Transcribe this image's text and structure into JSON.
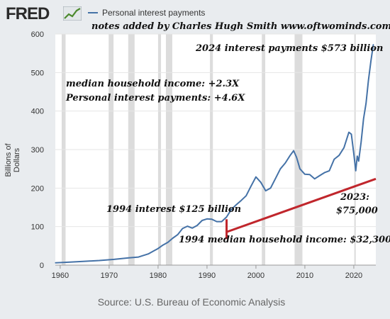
{
  "header": {
    "logo_text": "FRED",
    "logo_icon": "fred-line-graph-icon",
    "legend_label": "Personal interest payments"
  },
  "annotations": {
    "credit": "notes added by Charles Hugh Smith   www.oftwominds.com",
    "peak_2024": "2024 interest payments $573 billion",
    "income_growth": "median household income: +2.3X",
    "interest_growth": "Personal interest payments: +4.6X",
    "interest_1994": "1994 interest $125 billion",
    "income_1994": "1994 median household income: $32,300",
    "year_2023": "2023:",
    "income_2023": "$75,000"
  },
  "source": "Source: U.S. Bureau of Economic Analysis",
  "colors": {
    "series": "#4572a7",
    "overlay": "#c0262c",
    "recession": "#dcdcdc",
    "plot_background": "#ffffff",
    "page_background": "#e9ecef"
  },
  "chart_data": {
    "type": "line",
    "ylabel": "Billions of Dollars",
    "xlim": [
      1959,
      2024.5
    ],
    "ylim": [
      0,
      600
    ],
    "y_ticks": [
      0,
      100,
      200,
      300,
      400,
      500,
      600
    ],
    "x_ticks": [
      1960,
      1970,
      1980,
      1990,
      2000,
      2010,
      2020
    ],
    "grid": true,
    "legend_position": "top-left",
    "recessions": [
      [
        1960.3,
        1961.1
      ],
      [
        1969.9,
        1970.9
      ],
      [
        1973.9,
        1975.2
      ],
      [
        1980.0,
        1980.6
      ],
      [
        1981.6,
        1982.9
      ],
      [
        1990.6,
        1991.2
      ],
      [
        2001.2,
        2001.9
      ],
      [
        2007.9,
        2009.5
      ],
      [
        2020.1,
        2020.4
      ]
    ],
    "series": [
      {
        "name": "Personal interest payments",
        "x": [
          1959,
          1962,
          1965,
          1968,
          1971,
          1974,
          1976,
          1978,
          1979,
          1980,
          1981,
          1982,
          1983,
          1984,
          1985,
          1986,
          1987,
          1988,
          1989,
          1990,
          1991,
          1992,
          1993,
          1994,
          1995,
          1996,
          1997,
          1998,
          1999,
          2000,
          2001,
          2002,
          2003,
          2004,
          2005,
          2006,
          2007,
          2007.7,
          2008.3,
          2009,
          2010,
          2011,
          2012,
          2013,
          2014,
          2015,
          2016,
          2017,
          2018,
          2019,
          2019.5,
          2020,
          2020.4,
          2020.7,
          2021,
          2021.5,
          2022,
          2022.5,
          2023,
          2023.5,
          2024
        ],
        "y": [
          6,
          8,
          10,
          12,
          15,
          19,
          21,
          29,
          36,
          43,
          52,
          59,
          70,
          79,
          95,
          101,
          96,
          103,
          116,
          120,
          119,
          113,
          113,
          125,
          145,
          157,
          168,
          180,
          205,
          229,
          215,
          193,
          200,
          225,
          250,
          265,
          285,
          297,
          280,
          250,
          236,
          235,
          224,
          232,
          240,
          245,
          275,
          285,
          305,
          345,
          340,
          290,
          245,
          283,
          270,
          320,
          380,
          420,
          480,
          530,
          573
        ]
      }
    ],
    "overlay_line": {
      "name": "",
      "x": [
        1994,
        2024.5
      ],
      "y": [
        86,
        224
      ]
    }
  }
}
